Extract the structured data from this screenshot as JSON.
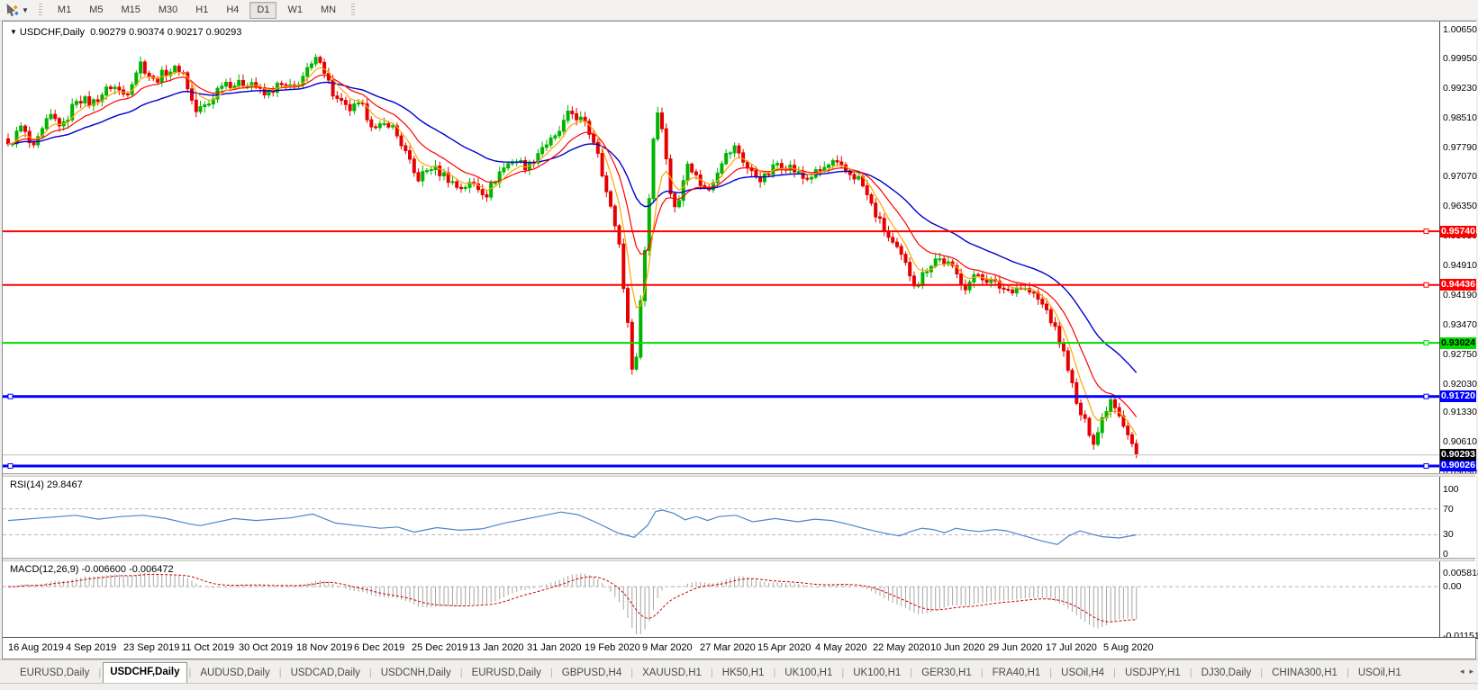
{
  "toolbar": {
    "pointer_tool": "pointer-with-diamonds",
    "timeframes": [
      "M1",
      "M5",
      "M15",
      "M30",
      "H1",
      "H4",
      "D1",
      "W1",
      "MN"
    ],
    "active_timeframe": "D1"
  },
  "chart": {
    "title": "USDCHF,Daily",
    "ohlc": "0.90279 0.90374 0.90217 0.90293",
    "price_axis": [
      "1.00650",
      "0.99950",
      "0.99230",
      "0.98510",
      "0.97790",
      "0.97070",
      "0.96350",
      "0.95630",
      "0.94910",
      "0.94190",
      "0.93470",
      "0.92750",
      "0.92030",
      "0.91330",
      "0.90610",
      "0.89890"
    ],
    "hlines": [
      {
        "price": "0.95740",
        "value": 0.9574,
        "color": "#ff0000",
        "text_color": "#ffffff",
        "width": 2
      },
      {
        "price": "0.94436",
        "value": 0.94436,
        "color": "#ff0000",
        "text_color": "#ffffff",
        "width": 2
      },
      {
        "price": "0.93024",
        "value": 0.93024,
        "color": "#00dd00",
        "text_color": "#000000",
        "width": 2
      },
      {
        "price": "0.91720",
        "value": 0.9172,
        "color": "#0000ff",
        "text_color": "#ffffff",
        "width": 3
      },
      {
        "price": "0.90026",
        "value": 0.90026,
        "color": "#0000ff",
        "text_color": "#ffffff",
        "width": 3
      }
    ],
    "current_price": {
      "price": "0.90293",
      "value": 0.90293,
      "bg": "#000000",
      "text_color": "#ffffff"
    },
    "dates": [
      "16 Aug 2019",
      "4 Sep 2019",
      "23 Sep 2019",
      "11 Oct 2019",
      "30 Oct 2019",
      "18 Nov 2019",
      "6 Dec 2019",
      "25 Dec 2019",
      "13 Jan 2020",
      "31 Jan 2020",
      "19 Feb 2020",
      "9 Mar 2020",
      "27 Mar 2020",
      "15 Apr 2020",
      "4 May 2020",
      "22 May 2020",
      "10 Jun 2020",
      "29 Jun 2020",
      "17 Jul 2020",
      "5 Aug 2020"
    ],
    "colors": {
      "up": "#00b400",
      "down": "#e60000",
      "ma_fast": "#ffa500",
      "ma_mid": "#ff0000",
      "ma_slow": "#0000cc",
      "current_line": "#c0c0c0"
    },
    "price_anchors": [
      [
        0.0,
        0.978
      ],
      [
        0.012,
        0.983
      ],
      [
        0.022,
        0.977
      ],
      [
        0.037,
        0.9855
      ],
      [
        0.049,
        0.983
      ],
      [
        0.061,
        0.99
      ],
      [
        0.074,
        0.9885
      ],
      [
        0.092,
        0.993
      ],
      [
        0.104,
        0.9905
      ],
      [
        0.117,
        0.9985
      ],
      [
        0.129,
        0.994
      ],
      [
        0.141,
        0.9965
      ],
      [
        0.154,
        0.997
      ],
      [
        0.166,
        0.9865
      ],
      [
        0.178,
        0.9885
      ],
      [
        0.19,
        0.994
      ],
      [
        0.203,
        0.993
      ],
      [
        0.215,
        0.994
      ],
      [
        0.227,
        0.9905
      ],
      [
        0.24,
        0.993
      ],
      [
        0.252,
        0.992
      ],
      [
        0.264,
        0.996
      ],
      [
        0.276,
        1.0
      ],
      [
        0.289,
        0.99
      ],
      [
        0.301,
        0.987
      ],
      [
        0.313,
        0.988
      ],
      [
        0.326,
        0.982
      ],
      [
        0.338,
        0.984
      ],
      [
        0.35,
        0.978
      ],
      [
        0.362,
        0.97
      ],
      [
        0.375,
        0.973
      ],
      [
        0.387,
        0.971
      ],
      [
        0.399,
        0.968
      ],
      [
        0.412,
        0.969
      ],
      [
        0.424,
        0.9665
      ],
      [
        0.436,
        0.972
      ],
      [
        0.448,
        0.975
      ],
      [
        0.461,
        0.973
      ],
      [
        0.473,
        0.978
      ],
      [
        0.485,
        0.98
      ],
      [
        0.498,
        0.9865
      ],
      [
        0.51,
        0.984
      ],
      [
        0.522,
        0.978
      ],
      [
        0.531,
        0.966
      ],
      [
        0.541,
        0.956
      ],
      [
        0.549,
        0.935
      ],
      [
        0.555,
        0.92
      ],
      [
        0.561,
        0.942
      ],
      [
        0.568,
        0.965
      ],
      [
        0.574,
        0.988
      ],
      [
        0.58,
        0.983
      ],
      [
        0.586,
        0.968
      ],
      [
        0.593,
        0.962
      ],
      [
        0.602,
        0.975
      ],
      [
        0.611,
        0.97
      ],
      [
        0.62,
        0.967
      ],
      [
        0.633,
        0.975
      ],
      [
        0.645,
        0.978
      ],
      [
        0.657,
        0.972
      ],
      [
        0.669,
        0.97
      ],
      [
        0.682,
        0.974
      ],
      [
        0.694,
        0.973
      ],
      [
        0.706,
        0.97
      ],
      [
        0.719,
        0.972
      ],
      [
        0.731,
        0.974
      ],
      [
        0.743,
        0.972
      ],
      [
        0.755,
        0.97
      ],
      [
        0.768,
        0.962
      ],
      [
        0.78,
        0.956
      ],
      [
        0.792,
        0.951
      ],
      [
        0.805,
        0.944
      ],
      [
        0.813,
        0.948
      ],
      [
        0.823,
        0.951
      ],
      [
        0.835,
        0.949
      ],
      [
        0.848,
        0.944
      ],
      [
        0.86,
        0.947
      ],
      [
        0.872,
        0.945
      ],
      [
        0.885,
        0.943
      ],
      [
        0.897,
        0.944
      ],
      [
        0.909,
        0.942
      ],
      [
        0.921,
        0.938
      ],
      [
        0.93,
        0.932
      ],
      [
        0.939,
        0.925
      ],
      [
        0.947,
        0.915
      ],
      [
        0.956,
        0.91
      ],
      [
        0.963,
        0.906
      ],
      [
        0.971,
        0.913
      ],
      [
        0.978,
        0.917
      ],
      [
        0.985,
        0.913
      ],
      [
        0.993,
        0.908
      ],
      [
        1.0,
        0.903
      ]
    ]
  },
  "rsi": {
    "label": "RSI(14) 29.8467",
    "color": "#4a86c8",
    "axis": [
      {
        "text": "100",
        "value": 100
      },
      {
        "text": "70",
        "value": 70
      },
      {
        "text": "30",
        "value": 30
      },
      {
        "text": "0",
        "value": 0
      }
    ],
    "levels": [
      70,
      30
    ],
    "anchors": [
      [
        0,
        52
      ],
      [
        0.03,
        56
      ],
      [
        0.06,
        60
      ],
      [
        0.08,
        54
      ],
      [
        0.1,
        58
      ],
      [
        0.12,
        60
      ],
      [
        0.14,
        55
      ],
      [
        0.16,
        47
      ],
      [
        0.17,
        44
      ],
      [
        0.2,
        55
      ],
      [
        0.22,
        52
      ],
      [
        0.25,
        56
      ],
      [
        0.27,
        62
      ],
      [
        0.29,
        48
      ],
      [
        0.31,
        44
      ],
      [
        0.33,
        40
      ],
      [
        0.345,
        42
      ],
      [
        0.36,
        34
      ],
      [
        0.38,
        41
      ],
      [
        0.4,
        37
      ],
      [
        0.42,
        39
      ],
      [
        0.44,
        48
      ],
      [
        0.455,
        53
      ],
      [
        0.47,
        58
      ],
      [
        0.49,
        65
      ],
      [
        0.505,
        61
      ],
      [
        0.52,
        50
      ],
      [
        0.54,
        33
      ],
      [
        0.555,
        26
      ],
      [
        0.567,
        45
      ],
      [
        0.574,
        66
      ],
      [
        0.58,
        68
      ],
      [
        0.59,
        63
      ],
      [
        0.6,
        53
      ],
      [
        0.61,
        58
      ],
      [
        0.62,
        52
      ],
      [
        0.63,
        58
      ],
      [
        0.645,
        60
      ],
      [
        0.66,
        50
      ],
      [
        0.68,
        55
      ],
      [
        0.7,
        50
      ],
      [
        0.715,
        54
      ],
      [
        0.73,
        52
      ],
      [
        0.745,
        46
      ],
      [
        0.76,
        39
      ],
      [
        0.775,
        33
      ],
      [
        0.79,
        28
      ],
      [
        0.8,
        35
      ],
      [
        0.81,
        40
      ],
      [
        0.82,
        38
      ],
      [
        0.83,
        33
      ],
      [
        0.84,
        40
      ],
      [
        0.85,
        37
      ],
      [
        0.86,
        35
      ],
      [
        0.875,
        38
      ],
      [
        0.885,
        36
      ],
      [
        0.895,
        31
      ],
      [
        0.905,
        26
      ],
      [
        0.915,
        21
      ],
      [
        0.925,
        17
      ],
      [
        0.93,
        15
      ],
      [
        0.94,
        28
      ],
      [
        0.95,
        36
      ],
      [
        0.96,
        31
      ],
      [
        0.97,
        27
      ],
      [
        0.985,
        25
      ],
      [
        1.0,
        29.85
      ]
    ]
  },
  "macd": {
    "label": "MACD(12,26,9) -0.006600 -0.006472",
    "axis_top": "0.005818",
    "axis_zero": "0.00",
    "axis_bottom": "-0.011514",
    "bar_color": "#a6a6a6",
    "signal_color": "#cc0000"
  },
  "tabs": {
    "items": [
      "EURUSD,Daily",
      "USDCHF,Daily",
      "AUDUSD,Daily",
      "USDCAD,Daily",
      "USDCNH,Daily",
      "EURUSD,Daily",
      "GBPUSD,H4",
      "XAUUSD,H1",
      "HK50,H1",
      "UK100,H1",
      "UK100,H1",
      "GER30,H1",
      "FRA40,H1",
      "USOil,H4",
      "USDJPY,H1",
      "DJ30,Daily",
      "CHINA300,H1",
      "USOil,H1"
    ],
    "active_index": 1,
    "nav_prev": "◂",
    "nav_next": "▸"
  }
}
